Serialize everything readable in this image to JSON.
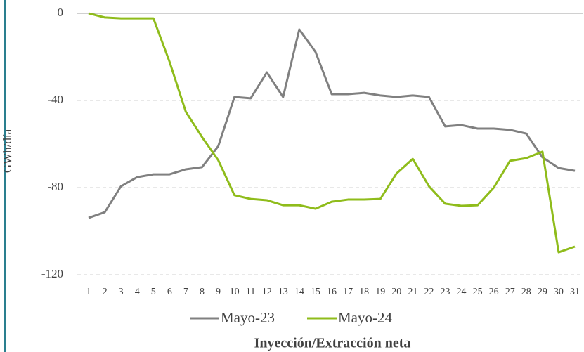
{
  "chart_data": {
    "type": "line",
    "y_label": "GWh/día",
    "x_label": "Inyección/Extracción neta",
    "categories": [
      "1",
      "2",
      "3",
      "4",
      "5",
      "6",
      "7",
      "8",
      "9",
      "10",
      "11",
      "12",
      "13",
      "14",
      "15",
      "16",
      "17",
      "18",
      "19",
      "20",
      "21",
      "22",
      "23",
      "24",
      "25",
      "26",
      "27",
      "28",
      "29",
      "30",
      "31"
    ],
    "series": [
      {
        "name": "Mayo-23",
        "color": "#808080",
        "values": [
          -93.9,
          -91.3,
          -79.4,
          -75.2,
          -73.9,
          -73.9,
          -71.6,
          -70.6,
          -61,
          -38.4,
          -39,
          -27.1,
          -38.4,
          -7.4,
          -17.7,
          -37.1,
          -37.1,
          -36.5,
          -37.7,
          -38.4,
          -37.7,
          -38.4,
          -51.9,
          -51.3,
          -52.9,
          -52.9,
          -53.5,
          -55.2,
          -66.1,
          -71,
          -72.3
        ]
      },
      {
        "name": "Mayo-24",
        "color": "#8fbc1b",
        "values": [
          0,
          -1.9,
          -2.3,
          -2.3,
          -2.3,
          -22.3,
          -45.2,
          -56.8,
          -67.4,
          -83.5,
          -85.2,
          -85.8,
          -88.1,
          -88.1,
          -89.7,
          -86.5,
          -85.5,
          -85.5,
          -85.2,
          -73.5,
          -66.8,
          -79.4,
          -87.4,
          -88.4,
          -88.1,
          -80,
          -67.7,
          -66.5,
          -63.5,
          -109.7,
          -107.1
        ]
      }
    ],
    "ylim": [
      -120,
      0
    ],
    "yticks": [
      -120,
      -80,
      -40,
      0
    ],
    "grid": true
  }
}
